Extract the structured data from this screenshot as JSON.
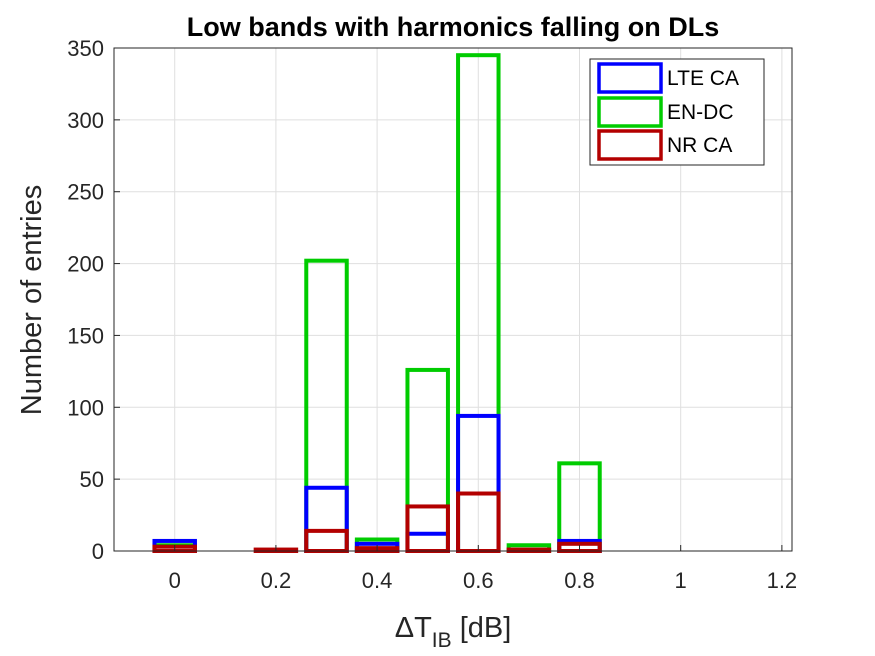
{
  "chart_data": {
    "type": "bar",
    "title": "Low bands with harmonics falling on DLs",
    "xlabel": {
      "prefix": "ΔT",
      "sub": "IB",
      "suffix": " [dB]"
    },
    "ylabel": "Number of entries",
    "xlim": [
      -0.12,
      1.22
    ],
    "ylim": [
      0,
      350
    ],
    "x_ticks": [
      0,
      0.2,
      0.4,
      0.6,
      0.8,
      1,
      1.2
    ],
    "x_tick_labels": [
      "0",
      "0.2",
      "0.4",
      "0.6",
      "0.8",
      "1",
      "1.2"
    ],
    "y_ticks": [
      0,
      50,
      100,
      150,
      200,
      250,
      300,
      350
    ],
    "y_tick_labels": [
      "0",
      "50",
      "100",
      "150",
      "200",
      "250",
      "300",
      "350"
    ],
    "grid": true,
    "legend_position": "top-right",
    "bin_width": 0.1,
    "bar_width": 0.08,
    "x": [
      0,
      0.1,
      0.2,
      0.3,
      0.4,
      0.5,
      0.6,
      0.7,
      0.8,
      0.9,
      1.0,
      1.1
    ],
    "series": [
      {
        "name": "LTE CA",
        "color": "#0000ff",
        "values": [
          7,
          0,
          0,
          44,
          5,
          12,
          94,
          0,
          7,
          0,
          0,
          0
        ]
      },
      {
        "name": "EN-DC",
        "color": "#00cc00",
        "values": [
          4,
          0,
          0,
          202,
          8,
          126,
          345,
          4,
          61,
          0,
          0,
          0
        ]
      },
      {
        "name": "NR CA",
        "color": "#b30000",
        "values": [
          3,
          0,
          1,
          14,
          2,
          31,
          40,
          1,
          5,
          0,
          0,
          0
        ]
      }
    ]
  }
}
